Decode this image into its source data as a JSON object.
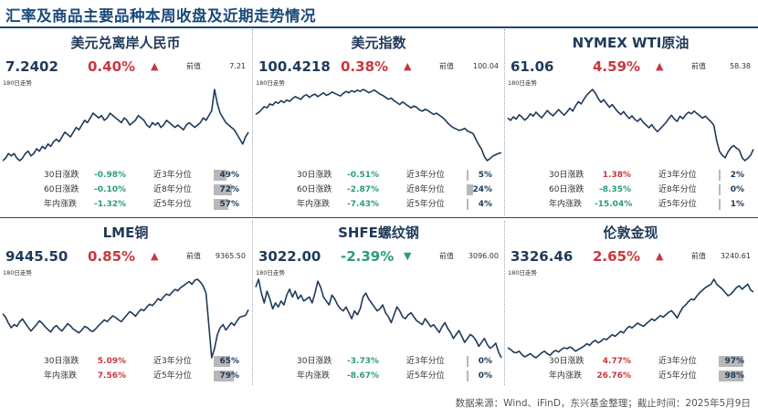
{
  "page_title": "汇率及商品主要品种本周收盘及近期走势情况",
  "source": "数据来源：Wind、iFinD，东兴基金整理；截止时间：2025年5月9日",
  "colors": {
    "up": "#c8383e",
    "down": "#2a9d78",
    "line": "#1f3a5a",
    "accent": "#1b4a7a",
    "bar": "#b8b8b8"
  },
  "labels": {
    "prev": "前值",
    "trend": "180日走势"
  },
  "chart_data": [
    {
      "type": "line",
      "title": "美元兑离岸人民币",
      "value": "7.2402",
      "change": "0.40%",
      "direction": "up",
      "arrow": "▲",
      "prev": "7.21",
      "stats": [
        {
          "label": "30日涨跌",
          "value": "-0.98%",
          "dir": "down",
          "plabel": "近3年分位",
          "pct": "49%",
          "pct_value": 49
        },
        {
          "label": "60日涨跌",
          "value": "-0.10%",
          "dir": "down",
          "plabel": "近8年分位",
          "pct": "72%",
          "pct_value": 72
        },
        {
          "label": "年内涨跌",
          "value": "-1.32%",
          "dir": "down",
          "plabel": "近5年分位",
          "pct": "57%",
          "pct_value": 57
        }
      ],
      "y": [
        7.12,
        7.13,
        7.15,
        7.14,
        7.15,
        7.13,
        7.12,
        7.13,
        7.15,
        7.16,
        7.14,
        7.15,
        7.17,
        7.16,
        7.18,
        7.17,
        7.19,
        7.18,
        7.2,
        7.21,
        7.2,
        7.22,
        7.24,
        7.23,
        7.22,
        7.24,
        7.26,
        7.25,
        7.27,
        7.29,
        7.28,
        7.3,
        7.32,
        7.31,
        7.3,
        7.31,
        7.29,
        7.3,
        7.32,
        7.31,
        7.3,
        7.29,
        7.28,
        7.3,
        7.29,
        7.27,
        7.28,
        7.29,
        7.31,
        7.3,
        7.29,
        7.27,
        7.26,
        7.28,
        7.27,
        7.28,
        7.26,
        7.27,
        7.29,
        7.28,
        7.27,
        7.26,
        7.27,
        7.26,
        7.25,
        7.27,
        7.28,
        7.27,
        7.26,
        7.27,
        7.28,
        7.3,
        7.29,
        7.31,
        7.33,
        7.42,
        7.36,
        7.32,
        7.3,
        7.28,
        7.27,
        7.26,
        7.25,
        7.23,
        7.21,
        7.19,
        7.22,
        7.24
      ]
    },
    {
      "type": "line",
      "title": "美元指数",
      "value": "100.4218",
      "change": "0.38%",
      "direction": "up",
      "arrow": "▲",
      "prev": "100.04",
      "stats": [
        {
          "label": "30日涨跌",
          "value": "-0.51%",
          "dir": "down",
          "plabel": "近3年分位",
          "pct": "5%",
          "pct_value": 5
        },
        {
          "label": "60日涨跌",
          "value": "-2.87%",
          "dir": "down",
          "plabel": "近8年分位",
          "pct": "24%",
          "pct_value": 24
        },
        {
          "label": "年内涨跌",
          "value": "-7.43%",
          "dir": "down",
          "plabel": "近5年分位",
          "pct": "4%",
          "pct_value": 4
        }
      ],
      "y": [
        106.2,
        106.5,
        106.9,
        107.4,
        107.2,
        107.8,
        107.6,
        108.1,
        107.9,
        108.3,
        108.0,
        108.4,
        108.2,
        108.6,
        108.9,
        108.7,
        108.5,
        109.0,
        109.2,
        108.8,
        109.1,
        109.3,
        108.9,
        109.2,
        109.5,
        109.1,
        109.3,
        109.6,
        109.4,
        109.2,
        109.0,
        109.4,
        109.7,
        109.5,
        109.8,
        109.6,
        109.9,
        109.7,
        110.0,
        109.8,
        109.5,
        109.7,
        109.9,
        109.6,
        109.3,
        109.1,
        108.8,
        108.5,
        108.7,
        108.3,
        108.0,
        107.7,
        108.1,
        107.8,
        107.5,
        107.2,
        107.5,
        107.3,
        106.9,
        106.7,
        107.0,
        106.8,
        106.5,
        106.2,
        106.4,
        106.1,
        105.8,
        105.4,
        104.9,
        104.5,
        104.2,
        104.0,
        103.8,
        103.9,
        104.1,
        103.7,
        103.5,
        103.3,
        102.4,
        101.6,
        100.9,
        99.8,
        99.2,
        99.5,
        99.9,
        100.1,
        100.3,
        100.4
      ]
    },
    {
      "type": "line",
      "title": "NYMEX WTI原油",
      "value": "61.06",
      "change": "4.59%",
      "direction": "up",
      "arrow": "▲",
      "prev": "58.38",
      "stats": [
        {
          "label": "30日涨跌",
          "value": "1.38%",
          "dir": "up",
          "plabel": "近3年分位",
          "pct": "2%",
          "pct_value": 2
        },
        {
          "label": "60日涨跌",
          "value": "-8.35%",
          "dir": "down",
          "plabel": "近8年分位",
          "pct": "0%",
          "pct_value": 0
        },
        {
          "label": "年内涨跌",
          "value": "-15.04%",
          "dir": "down",
          "plabel": "近5年分位",
          "pct": "1%",
          "pct_value": 1
        }
      ],
      "y": [
        70.5,
        69.8,
        70.9,
        70.2,
        71.5,
        70.8,
        69.9,
        70.6,
        71.8,
        71.1,
        72.3,
        71.4,
        70.6,
        71.7,
        72.8,
        71.9,
        71.2,
        72.1,
        73.1,
        72.2,
        71.4,
        72.4,
        73.5,
        72.6,
        74.2,
        75.5,
        74.8,
        76.3,
        77.5,
        78.4,
        79.2,
        78.1,
        76.5,
        75.3,
        76.1,
        74.9,
        73.8,
        74.6,
        73.5,
        72.4,
        71.6,
        72.5,
        71.3,
        70.4,
        71.2,
        70.1,
        69.5,
        70.4,
        69.2,
        68.4,
        67.6,
        68.5,
        67.3,
        66.4,
        67.3,
        68.2,
        69.1,
        70.3,
        71.4,
        70.2,
        69.5,
        71.1,
        70.3,
        71.5,
        72.3,
        71.8,
        72.6,
        71.9,
        71.2,
        70.5,
        71.1,
        70.2,
        69.4,
        68.3,
        63.6,
        60.4,
        59.2,
        58.5,
        60.3,
        61.5,
        62.2,
        61.4,
        60.8,
        58.5,
        57.6,
        58.3,
        59.2,
        61.06
      ]
    },
    {
      "type": "line",
      "title": "LME铜",
      "value": "9445.50",
      "change": "0.85%",
      "direction": "up",
      "arrow": "▲",
      "prev": "9365.50",
      "stats": [
        {
          "label": "30日涨跌",
          "value": "5.09%",
          "dir": "up",
          "plabel": "近3年分位",
          "pct": "65%",
          "pct_value": 65
        },
        {
          "label": "年内涨跌",
          "value": "7.56%",
          "dir": "up",
          "plabel": "近5年分位",
          "pct": "79%",
          "pct_value": 79
        }
      ],
      "y": [
        9350,
        9280,
        9150,
        9050,
        9120,
        9080,
        9180,
        9240,
        9150,
        9060,
        8980,
        9050,
        9120,
        9200,
        9150,
        9070,
        9010,
        8960,
        9050,
        9100,
        9030,
        8980,
        9060,
        9140,
        9090,
        9020,
        8980,
        8940,
        9000,
        9080,
        9050,
        8990,
        8970,
        9030,
        9100,
        9160,
        9220,
        9180,
        9250,
        9310,
        9270,
        9220,
        9180,
        9260,
        9330,
        9400,
        9360,
        9300,
        9380,
        9450,
        9420,
        9500,
        9560,
        9530,
        9600,
        9680,
        9640,
        9720,
        9780,
        9750,
        9820,
        9880,
        9850,
        9920,
        9960,
        10010,
        10050,
        9990,
        10080,
        10100,
        10040,
        9950,
        9800,
        9100,
        8400,
        8600,
        8900,
        9050,
        9120,
        9000,
        9080,
        9160,
        9100,
        9200,
        9280,
        9300,
        9320,
        9440
      ]
    },
    {
      "type": "line",
      "title": "SHFE螺纹钢",
      "value": "3022.00",
      "change": "-2.39%",
      "direction": "down",
      "arrow": "▼",
      "prev": "3096.00",
      "stats": [
        {
          "label": "30日涨跌",
          "value": "-3.73%",
          "dir": "down",
          "plabel": "近3年分位",
          "pct": "0%",
          "pct_value": 0
        },
        {
          "label": "年内涨跌",
          "value": "-8.67%",
          "dir": "down",
          "plabel": "近5年分位",
          "pct": "0%",
          "pct_value": 0
        }
      ],
      "y": [
        3380,
        3420,
        3350,
        3300,
        3360,
        3320,
        3270,
        3300,
        3280,
        3310,
        3290,
        3340,
        3370,
        3330,
        3360,
        3320,
        3340,
        3310,
        3320,
        3330,
        3300,
        3350,
        3410,
        3380,
        3330,
        3310,
        3290,
        3340,
        3320,
        3290,
        3270,
        3260,
        3280,
        3250,
        3220,
        3260,
        3240,
        3270,
        3330,
        3350,
        3320,
        3300,
        3280,
        3260,
        3270,
        3290,
        3250,
        3230,
        3200,
        3240,
        3280,
        3260,
        3230,
        3220,
        3240,
        3250,
        3230,
        3210,
        3200,
        3190,
        3220,
        3200,
        3180,
        3190,
        3170,
        3150,
        3180,
        3200,
        3170,
        3150,
        3120,
        3140,
        3160,
        3130,
        3100,
        3120,
        3140,
        3130,
        3110,
        3080,
        3100,
        3120,
        3090,
        3070,
        3080,
        3096,
        3050,
        3022
      ]
    },
    {
      "type": "line",
      "title": "伦敦金现",
      "value": "3326.46",
      "change": "2.65%",
      "direction": "up",
      "arrow": "▲",
      "prev": "3240.61",
      "stats": [
        {
          "label": "30日涨跌",
          "value": "4.77%",
          "dir": "up",
          "plabel": "近3年分位",
          "pct": "97%",
          "pct_value": 97
        },
        {
          "label": "年内涨跌",
          "value": "26.76%",
          "dir": "up",
          "plabel": "近5年分位",
          "pct": "98%",
          "pct_value": 98
        }
      ],
      "y": [
        2650,
        2630,
        2600,
        2590,
        2610,
        2570,
        2540,
        2560,
        2580,
        2550,
        2530,
        2560,
        2590,
        2610,
        2580,
        2560,
        2600,
        2620,
        2600,
        2630,
        2650,
        2640,
        2660,
        2640,
        2610,
        2630,
        2650,
        2670,
        2700,
        2680,
        2720,
        2740,
        2710,
        2730,
        2760,
        2750,
        2780,
        2810,
        2790,
        2820,
        2850,
        2830,
        2880,
        2910,
        2890,
        2920,
        2950,
        2930,
        2910,
        2940,
        2970,
        3000,
        2980,
        3010,
        3040,
        3020,
        3050,
        3080,
        3100,
        3060,
        3010,
        3080,
        3140,
        3170,
        3210,
        3240,
        3230,
        3280,
        3320,
        3350,
        3380,
        3400,
        3420,
        3480,
        3420,
        3390,
        3360,
        3320,
        3280,
        3300,
        3340,
        3380,
        3400,
        3360,
        3390,
        3420,
        3350,
        3326
      ]
    }
  ]
}
